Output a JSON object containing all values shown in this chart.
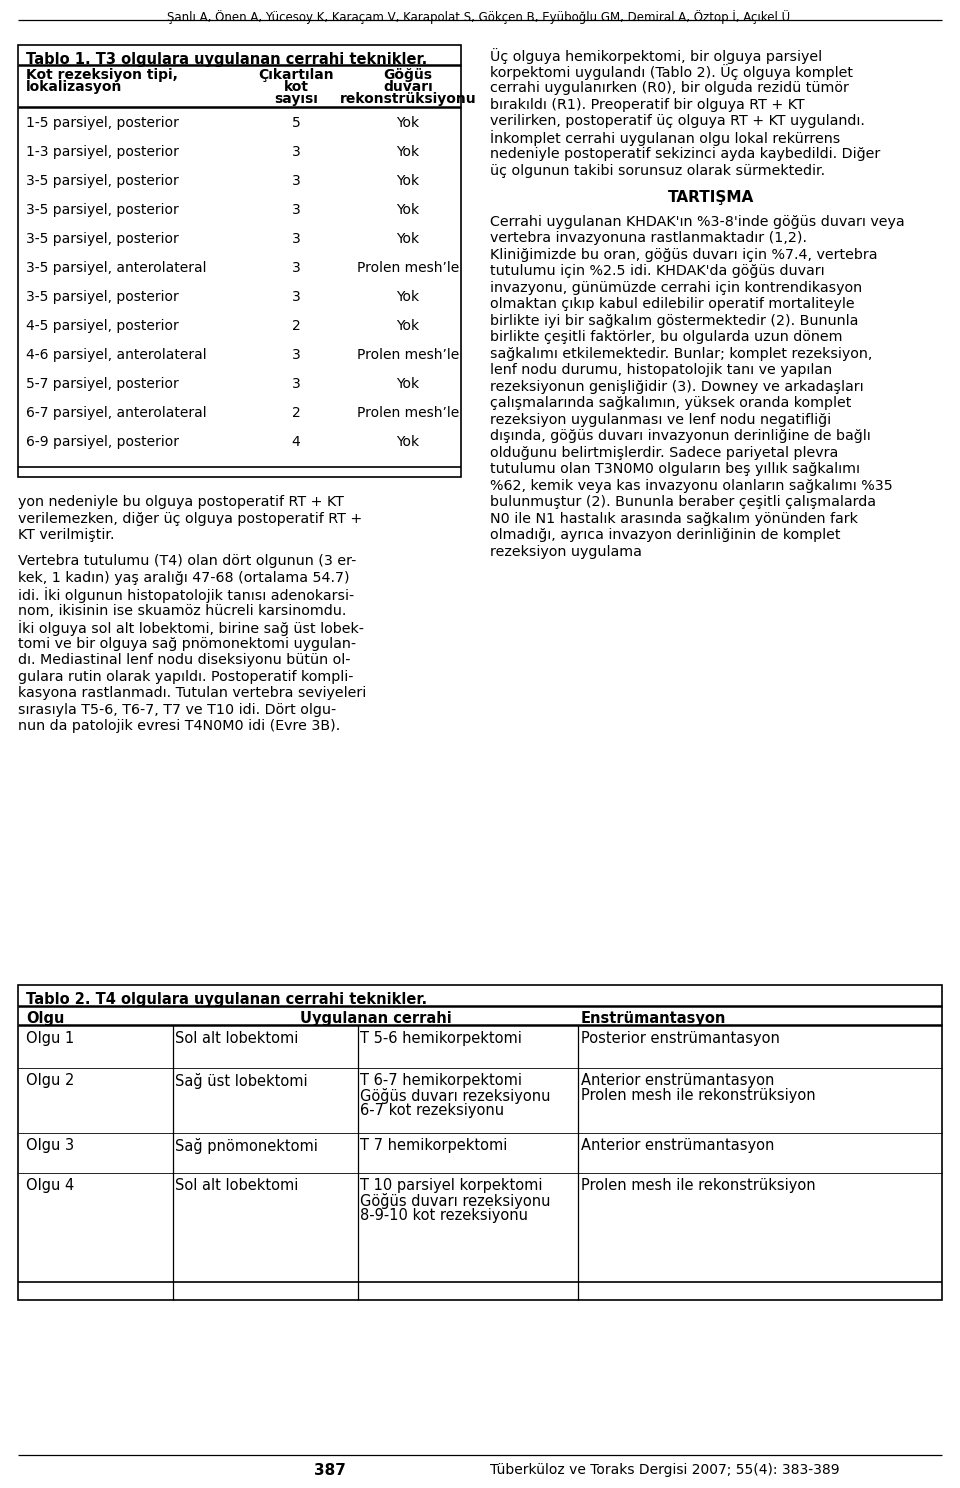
{
  "header": "Şanlı A, Önen A, Yücesoy K, Karaçam V, Karapolat S, Gökçen B, Eyüboğlu GM, Demiral A, Öztop İ, Açıkel Ü.",
  "table1_title": "Tablo 1. T3 olgulara uygulanan cerrahi teknikler.",
  "table1_col1_line1": "Kot rezeksiyon tipi,",
  "table1_col1_line2": "lokalizasyon",
  "table1_col2_lines": [
    "Çıkartılan",
    "kot",
    "sayısı"
  ],
  "table1_col3_lines": [
    "Göğüs",
    "duvarı",
    "rekonstrüksiyonu"
  ],
  "table1_rows": [
    [
      "1-5 parsiyel, posterior",
      "5",
      "Yok"
    ],
    [
      "1-3 parsiyel, posterior",
      "3",
      "Yok"
    ],
    [
      "3-5 parsiyel, posterior",
      "3",
      "Yok"
    ],
    [
      "3-5 parsiyel, posterior",
      "3",
      "Yok"
    ],
    [
      "3-5 parsiyel, posterior",
      "3",
      "Yok"
    ],
    [
      "3-5 parsiyel, anterolateral",
      "3",
      "Prolen mesh’le"
    ],
    [
      "3-5 parsiyel, posterior",
      "3",
      "Yok"
    ],
    [
      "4-5 parsiyel, posterior",
      "2",
      "Yok"
    ],
    [
      "4-6 parsiyel, anterolateral",
      "3",
      "Prolen mesh’le"
    ],
    [
      "5-7 parsiyel, posterior",
      "3",
      "Yok"
    ],
    [
      "6-7 parsiyel, anterolateral",
      "2",
      "Prolen mesh’le"
    ],
    [
      "6-9 parsiyel, posterior",
      "4",
      "Yok"
    ]
  ],
  "right_para1": "Üç olguya hemikorpektomi, bir olguya parsiyel korpektomi uygulandı (Tablo 2). Üç olguya komplet cerrahi uygulanırken (R0), bir olguda rezidü tümör bırakıldı (R1). Preoperatif bir olguya RT + KT verilirken, postoperatif üç olguya RT + KT uygulandı. İnkomplet cerrahi uygulanan olgu lokal rekürrens nedeniyle postoperatif sekizinci ayda kaybedildi. Diğer üç olgunun takibi sorunsuz olarak sürmektedir.",
  "right_heading": "TARTIŞMA",
  "right_para2": "Cerrahi uygulanan KHDAK'ın %3-8'inde göğüs duvarı veya vertebra invazyonuna rastlanmaktadır (1,2). Kliniğimizde bu oran, göğüs duvarı için %7.4, vertebra tutulumu için %2.5 idi. KHDAK'da göğüs duvarı invazyonu, günümüzde cerrahi için kontrendikasyon olmaktan çıkıp kabul edilebilir operatif mortaliteyle birlikte iyi bir sağkalım göstermektedir (2). Bununla birlikte çeşitli faktörler, bu olgularda uzun dönem sağkalımı etkilemektedir. Bunlar; komplet rezeksiyon, lenf nodu durumu, histopatolojik tanı ve yapılan rezeksiyonun genişliğidir (3). Downey ve arkadaşları çalışmalarında sağkalımın, yüksek oranda komplet rezeksiyon uygulanması ve lenf nodu negatifliği dışında, göğüs duvarı invazyonun derinliğine de bağlı olduğunu belirtmişlerdir. Sadece pariyetal plevra tutulumu olan T3N0M0 olguların beş yıllık sağkalımı %62, kemik veya kas invazyonu olanların sağkalımı %35 bulunmuştur (2). Bununla beraber çeşitli çalışmalarda N0 ile N1 hastalık arasında sağkalım yönünden fark olmadığı, ayrıca invazyon derinliğinin de komplet rezeksiyon uygulama",
  "left_bottom_lines": [
    "yon nedeniyle bu olguya postoperatif RT + KT",
    "verilemezken, diğer üç olguya postoperatif RT +",
    "KT verilmiştir.",
    "",
    "Vertebra tutulumu (T4) olan dört olgunun (3 er-",
    "kek, 1 kadın) yaş aralığı 47-68 (ortalama 54.7)",
    "idi. İki olgunun histopatolojik tanısı adenokarsi-",
    "nom, ikisinin ise skuamöz hücreli karsinomdu.",
    "İki olguya sol alt lobektomi, birine sağ üst lobek-",
    "tomi ve bir olguya sağ pnömonektomi uygulan-",
    "dı. Mediastinal lenf nodu diseksiyonu bütün ol-",
    "gulara rutin olarak yapıldı. Postoperatif kompli-",
    "kasyona rastlanmadı. Tutulan vertebra seviyeleri",
    "sırasıyla T5-6, T6-7, T7 ve T10 idi. Dört olgu-",
    "nun da patolojik evresi T4N0M0 idi (Evre 3B)."
  ],
  "table2_title": "Tablo 2. T4 olgulara uygulanan cerrahi teknikler.",
  "table2_headers": [
    "Olgu",
    "Uygulanan cerrahi",
    "Enstrümantasyon"
  ],
  "table2_rows": [
    {
      "olgu": "Olgu 1",
      "cerrahi1": "Sol alt lobektomi",
      "cerrahi2": "T 5-6 hemikorpektomi",
      "enstr": "Posterior enstrümantasyon"
    },
    {
      "olgu": "Olgu 2",
      "cerrahi1": "Sağ üst lobektomi",
      "cerrahi2": "T 6-7 hemikorpektomi\nGöğüs duvarı rezeksiyonu\n6-7 kot rezeksiyonu",
      "enstr": "Anterior enstrümantasyon\nProlen mesh ile rekonstrüksiyon"
    },
    {
      "olgu": "Olgu 3",
      "cerrahi1": "Sağ pnömonektomi",
      "cerrahi2": "T 7 hemikorpektomi",
      "enstr": "Anterior enstrümantasyon"
    },
    {
      "olgu": "Olgu 4",
      "cerrahi1": "Sol alt lobektomi",
      "cerrahi2": "T 10 parsiyel korpektomi\nGöğüs duvarı rezeksiyonu\n8-9-10 kot rezeksiyonu",
      "enstr": "Prolen mesh ile rekonstrüksiyon"
    }
  ],
  "footer_num": "387",
  "footer_text": "Tüberküloz ve Toraks Dergisi 2007; 55(4): 383-389"
}
